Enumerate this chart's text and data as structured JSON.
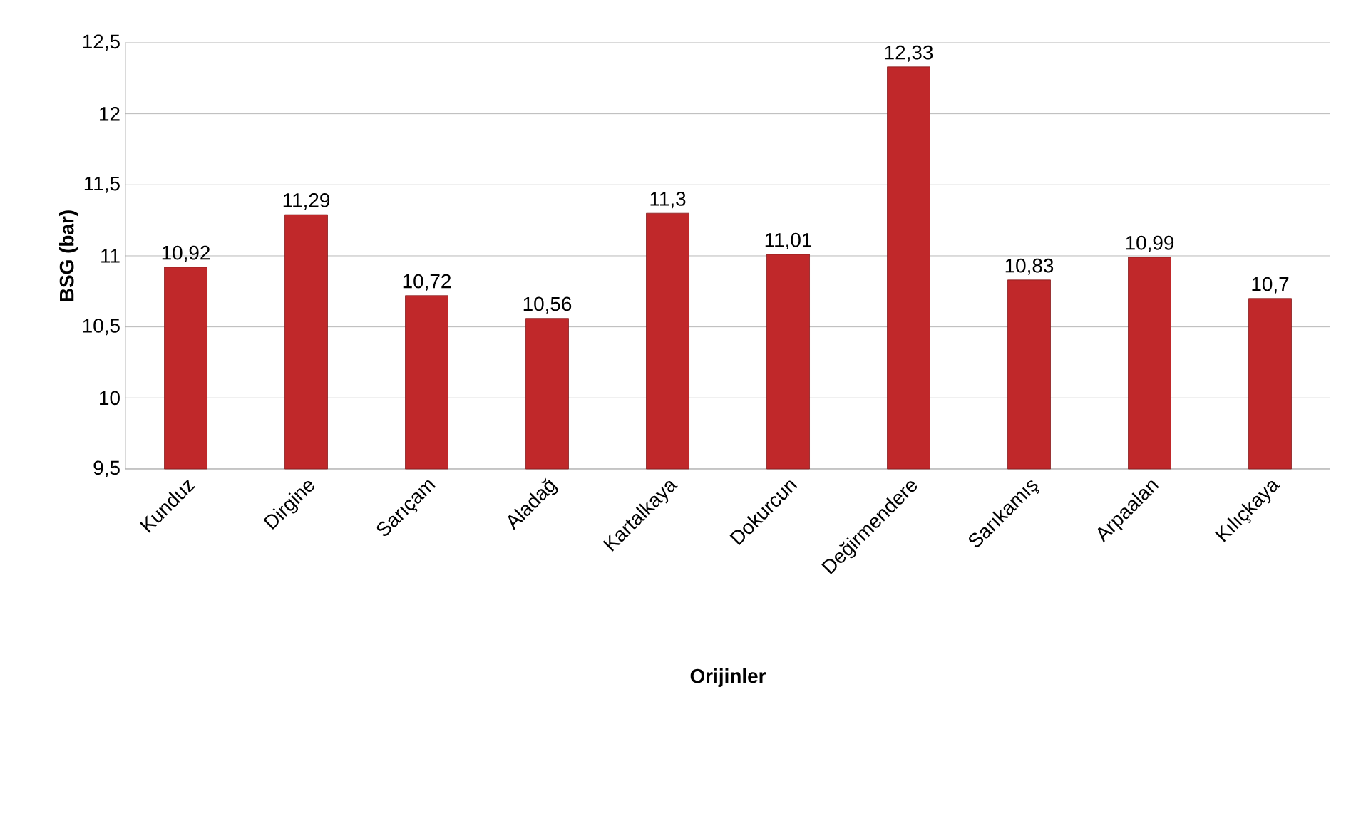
{
  "chart_data": {
    "type": "bar",
    "xlabel": "Orijinler",
    "ylabel": "BSG (bar)",
    "categories": [
      "Kunduz",
      "Dirgine",
      "Sarıçam",
      "Aladağ",
      "Kartalkaya",
      "Dokurcun",
      "Değirmendere",
      "Sarıkamış",
      "Arpaalan",
      "Kılıçkaya"
    ],
    "values": [
      10.92,
      11.29,
      10.72,
      10.56,
      11.3,
      11.01,
      12.33,
      10.83,
      10.99,
      10.7
    ],
    "value_labels": [
      "10,92",
      "11,29",
      "10,72",
      "10,56",
      "11,3",
      "11,01",
      "12,33",
      "10,83",
      "10,99",
      "10,7"
    ],
    "color": "#c0282a",
    "ylim": [
      9.5,
      12.5
    ],
    "yticks": [
      {
        "value": 9.5,
        "label": "9,5"
      },
      10,
      {
        "value": 10.5,
        "label": "10,5"
      },
      11,
      {
        "value": 11.5,
        "label": "11,5"
      },
      12,
      {
        "value": 12.5,
        "label": "12,5"
      }
    ],
    "grid": "y"
  }
}
